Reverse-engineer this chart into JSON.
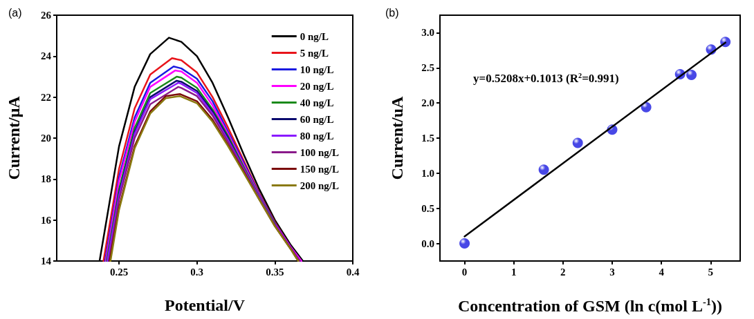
{
  "chart_data": [
    {
      "type": "line",
      "xlabel": "Potential/V",
      "ylabel": "Current/μA",
      "annotations": [
        "(a)"
      ],
      "xlim": [
        0.21,
        0.4
      ],
      "xticks": [
        0.25,
        0.3,
        0.35,
        0.4
      ],
      "ylim": [
        14,
        26
      ],
      "yticks": [
        14,
        16,
        18,
        20,
        22,
        24,
        26
      ],
      "grid": false,
      "legend": "top right",
      "marker": "none",
      "line_style": "solid",
      "series": [
        {
          "name": "0 ng/L",
          "color": "#000000",
          "x": [
            0.2375,
            0.25,
            0.26,
            0.27,
            0.282,
            0.29,
            0.3,
            0.31,
            0.32,
            0.33,
            0.34,
            0.35,
            0.36,
            0.368
          ],
          "values": [
            14,
            19.6,
            22.5,
            24.1,
            24.9,
            24.7,
            24.0,
            22.7,
            21.0,
            19.2,
            17.5,
            16.0,
            14.8,
            14
          ]
        },
        {
          "name": "5 ng/L",
          "color": "#e8141a",
          "x": [
            0.24,
            0.25,
            0.26,
            0.27,
            0.284,
            0.29,
            0.3,
            0.31,
            0.32,
            0.33,
            0.34,
            0.35,
            0.36,
            0.367
          ],
          "values": [
            14,
            18.5,
            21.45,
            23.1,
            23.9,
            23.8,
            23.2,
            22.0,
            20.5,
            18.9,
            17.3,
            15.9,
            14.7,
            14
          ]
        },
        {
          "name": "10 ng/L",
          "color": "#1a1ae0",
          "x": [
            0.241,
            0.25,
            0.26,
            0.27,
            0.285,
            0.29,
            0.3,
            0.31,
            0.32,
            0.33,
            0.34,
            0.35,
            0.36,
            0.367
          ],
          "values": [
            14,
            18.1,
            21.0,
            22.7,
            23.5,
            23.4,
            22.9,
            21.8,
            20.3,
            18.8,
            17.25,
            15.85,
            14.7,
            14
          ]
        },
        {
          "name": "20 ng/L",
          "color": "#ff00ff",
          "x": [
            0.2415,
            0.25,
            0.26,
            0.27,
            0.286,
            0.29,
            0.3,
            0.31,
            0.32,
            0.33,
            0.34,
            0.35,
            0.36,
            0.367
          ],
          "values": [
            14,
            17.9,
            20.8,
            22.5,
            23.3,
            23.25,
            22.7,
            21.6,
            20.2,
            18.7,
            17.2,
            15.8,
            14.7,
            14
          ]
        },
        {
          "name": "40 ng/L",
          "color": "#1a8a1a",
          "x": [
            0.242,
            0.25,
            0.26,
            0.27,
            0.287,
            0.29,
            0.3,
            0.31,
            0.32,
            0.33,
            0.34,
            0.35
          ],
          "values": [
            14,
            17.5,
            20.5,
            22.2,
            23.0,
            22.95,
            22.45,
            21.4,
            20.1,
            18.6,
            17.15,
            15.8
          ]
        },
        {
          "name": "60 ng/L",
          "color": "#0a0a6e",
          "x": [
            0.2425,
            0.25,
            0.26,
            0.27,
            0.287,
            0.29,
            0.3,
            0.31,
            0.32,
            0.33,
            0.34,
            0.35,
            0.36,
            0.366
          ],
          "values": [
            14,
            17.3,
            20.3,
            22.0,
            22.8,
            22.75,
            22.3,
            21.3,
            20.0,
            18.5,
            17.1,
            15.75,
            14.65,
            14
          ]
        },
        {
          "name": "80 ng/L",
          "color": "#8a1aff",
          "x": [
            0.2425,
            0.25,
            0.26,
            0.27,
            0.288,
            0.29,
            0.3,
            0.31,
            0.32,
            0.33,
            0.34,
            0.35,
            0.36,
            0.366
          ],
          "values": [
            14,
            17.2,
            20.2,
            21.9,
            22.7,
            22.65,
            22.2,
            21.2,
            19.9,
            18.5,
            17.1,
            15.75,
            14.65,
            14
          ]
        },
        {
          "name": "100 ng/L",
          "color": "#8a1a8a",
          "x": [
            0.2435,
            0.25,
            0.26,
            0.27,
            0.288,
            0.29,
            0.3,
            0.31,
            0.32,
            0.33,
            0.34,
            0.35,
            0.36,
            0.366
          ],
          "values": [
            14,
            17.0,
            20.0,
            21.65,
            22.5,
            22.45,
            22.05,
            21.1,
            19.8,
            18.45,
            17.05,
            15.75,
            14.65,
            14
          ]
        },
        {
          "name": "150 ng/L",
          "color": "#7a0a0a",
          "x": [
            0.244,
            0.25,
            0.26,
            0.27,
            0.28,
            0.289,
            0.3,
            0.31,
            0.32,
            0.33,
            0.34,
            0.35,
            0.36,
            0.365
          ],
          "values": [
            14,
            16.6,
            19.6,
            21.3,
            22.05,
            22.15,
            21.8,
            20.9,
            19.65,
            18.35,
            17.0,
            15.7,
            14.6,
            14
          ]
        },
        {
          "name": "200 ng/L",
          "color": "#8a7a10",
          "x": [
            0.2445,
            0.25,
            0.26,
            0.27,
            0.28,
            0.289,
            0.3,
            0.31,
            0.32,
            0.33,
            0.34,
            0.35,
            0.36,
            0.365
          ],
          "values": [
            14,
            16.5,
            19.5,
            21.2,
            21.95,
            22.05,
            21.7,
            20.8,
            19.6,
            18.3,
            17.0,
            15.7,
            14.6,
            14
          ]
        }
      ]
    },
    {
      "type": "scatter",
      "xlabel": "Concentration of GSM (ln c(mol L$^{-1}$))",
      "ylabel": "Current/uA",
      "annotations": [
        "(b)",
        "y=0.5208x+0.1013 (R$^{2}$=0.991)"
      ],
      "xlim": [
        -0.5,
        5.6
      ],
      "xticks": [
        0,
        1,
        2,
        3,
        4,
        5
      ],
      "ylim": [
        -0.25,
        3.25
      ],
      "yticks": [
        {
          "value": 0,
          "label": "0.0"
        },
        0.5,
        {
          "value": 1,
          "label": "1.0"
        },
        1.5,
        {
          "value": 2,
          "label": "2.0"
        },
        2.5,
        {
          "value": 3,
          "label": "3.0"
        }
      ],
      "grid": false,
      "legend": false,
      "marker": "circle",
      "series": [
        {
          "type": "line",
          "color": "#000000",
          "marker": "none",
          "x": [
            0,
            5.3
          ],
          "values": [
            0.1,
            2.86
          ]
        },
        {
          "color": "#1a1ae0",
          "x": [
            0,
            1.61,
            2.3,
            3.0,
            3.69,
            4.38,
            4.61,
            5.01,
            5.3
          ],
          "values": [
            0,
            1.05,
            1.43,
            1.62,
            1.94,
            2.41,
            2.4,
            2.76,
            2.87
          ]
        }
      ]
    }
  ]
}
